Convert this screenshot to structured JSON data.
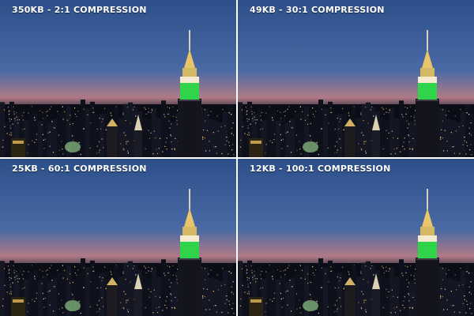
{
  "panels": [
    {
      "caption": "350KB - 2:1 COMPRESSION",
      "quality": "high"
    },
    {
      "caption": "49KB - 30:1 COMPRESSION",
      "quality": "medium"
    },
    {
      "caption": "25KB - 60:1 COMPRESSION",
      "quality": "low"
    },
    {
      "caption": "12KB - 100:1 COMPRESSION",
      "quality": "lowest"
    }
  ],
  "colors": {
    "sky_top": "#2c4f8a",
    "sky_mid": "#4a6aa5",
    "sky_horizon": "#b07a86",
    "tower_green": "#2fd44a",
    "spire_gold": "#e8c46a",
    "city_dark": "#0b0d16",
    "city_light": "#ffcc66"
  }
}
